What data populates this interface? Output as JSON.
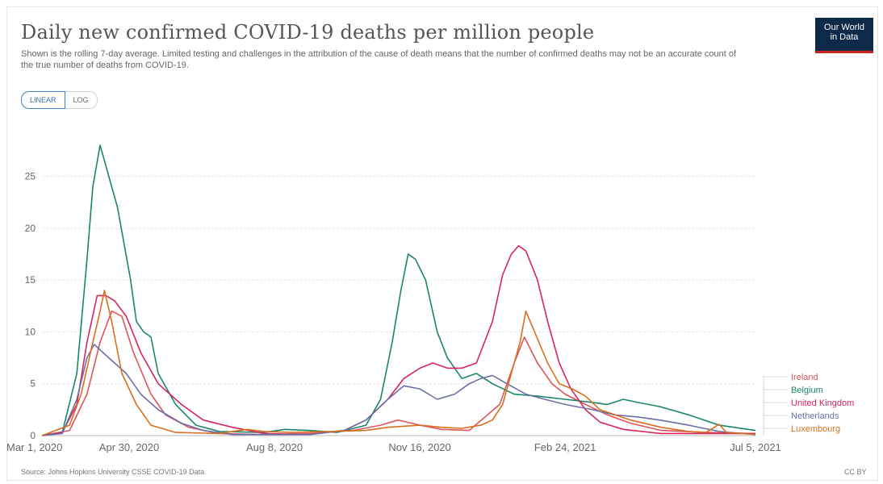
{
  "header": {
    "title": "Daily new confirmed COVID-19 deaths per million people",
    "subtitle": "Shown is the rolling 7-day average. Limited testing and challenges in the attribution of the cause of death means that the number of confirmed deaths may not be an accurate count of the true number of deaths from COVID-19.",
    "logo_line1": "Our World",
    "logo_line2": "in Data"
  },
  "controls": {
    "linear_label": "LINEAR",
    "log_label": "LOG",
    "active": "LINEAR"
  },
  "footer": {
    "source": "Source: Johns Hopkins University CSSE COVID-19 Data",
    "license": "CC BY"
  },
  "chart_data": {
    "type": "line",
    "title": "Daily new confirmed COVID-19 deaths per million people",
    "xlabel": "",
    "ylabel": "",
    "x_range": [
      "2020-03-01",
      "2021-07-05"
    ],
    "ylim": [
      0,
      28
    ],
    "y_ticks": [
      0,
      5,
      10,
      15,
      20,
      25
    ],
    "x_ticks": [
      {
        "date": "2020-03-01",
        "label": "Mar 1, 2020"
      },
      {
        "date": "2020-04-30",
        "label": "Apr 30, 2020"
      },
      {
        "date": "2020-08-08",
        "label": "Aug 8, 2020"
      },
      {
        "date": "2020-11-16",
        "label": "Nov 16, 2020"
      },
      {
        "date": "2021-02-24",
        "label": "Feb 24, 2021"
      },
      {
        "date": "2021-07-05",
        "label": "Jul 5, 2021"
      }
    ],
    "grid": "horizontal",
    "legend_position": "right",
    "series": [
      {
        "name": "Ireland",
        "color": "#e0545b",
        "points": [
          [
            "2020-03-01",
            0
          ],
          [
            "2020-03-20",
            0.5
          ],
          [
            "2020-04-01",
            4
          ],
          [
            "2020-04-10",
            9
          ],
          [
            "2020-04-18",
            12
          ],
          [
            "2020-04-25",
            11.5
          ],
          [
            "2020-05-03",
            8
          ],
          [
            "2020-05-15",
            4
          ],
          [
            "2020-05-25",
            2
          ],
          [
            "2020-06-10",
            0.8
          ],
          [
            "2020-07-01",
            0.2
          ],
          [
            "2020-08-01",
            0.1
          ],
          [
            "2020-09-01",
            0.2
          ],
          [
            "2020-10-01",
            0.5
          ],
          [
            "2020-10-20",
            1
          ],
          [
            "2020-11-01",
            1.5
          ],
          [
            "2020-11-16",
            1
          ],
          [
            "2020-12-01",
            0.6
          ],
          [
            "2020-12-20",
            0.5
          ],
          [
            "2021-01-10",
            3
          ],
          [
            "2021-01-20",
            7
          ],
          [
            "2021-01-27",
            9.5
          ],
          [
            "2021-02-05",
            7
          ],
          [
            "2021-02-15",
            5
          ],
          [
            "2021-02-24",
            4
          ],
          [
            "2021-03-10",
            3
          ],
          [
            "2021-03-25",
            2
          ],
          [
            "2021-04-10",
            1.2
          ],
          [
            "2021-05-01",
            0.5
          ],
          [
            "2021-06-01",
            0.3
          ],
          [
            "2021-07-05",
            0.2
          ]
        ]
      },
      {
        "name": "Belgium",
        "color": "#19866b",
        "points": [
          [
            "2020-03-01",
            0
          ],
          [
            "2020-03-15",
            0.3
          ],
          [
            "2020-03-25",
            6
          ],
          [
            "2020-04-01",
            17
          ],
          [
            "2020-04-05",
            24
          ],
          [
            "2020-04-10",
            28
          ],
          [
            "2020-04-12",
            27
          ],
          [
            "2020-04-16",
            25
          ],
          [
            "2020-04-22",
            22
          ],
          [
            "2020-05-01",
            15
          ],
          [
            "2020-05-05",
            11
          ],
          [
            "2020-05-10",
            10
          ],
          [
            "2020-05-15",
            9.5
          ],
          [
            "2020-05-20",
            6
          ],
          [
            "2020-06-01",
            3
          ],
          [
            "2020-06-15",
            1
          ],
          [
            "2020-07-01",
            0.4
          ],
          [
            "2020-08-01",
            0.3
          ],
          [
            "2020-08-15",
            0.6
          ],
          [
            "2020-09-01",
            0.5
          ],
          [
            "2020-09-20",
            0.3
          ],
          [
            "2020-10-10",
            1
          ],
          [
            "2020-10-20",
            3.5
          ],
          [
            "2020-10-28",
            9
          ],
          [
            "2020-11-03",
            14
          ],
          [
            "2020-11-08",
            17.5
          ],
          [
            "2020-11-13",
            17
          ],
          [
            "2020-11-20",
            15
          ],
          [
            "2020-11-28",
            10
          ],
          [
            "2020-12-05",
            7.5
          ],
          [
            "2020-12-15",
            5.5
          ],
          [
            "2020-12-25",
            6
          ],
          [
            "2021-01-05",
            5
          ],
          [
            "2021-01-20",
            4
          ],
          [
            "2021-02-05",
            3.8
          ],
          [
            "2021-02-24",
            3.5
          ],
          [
            "2021-03-15",
            3.2
          ],
          [
            "2021-03-25",
            3
          ],
          [
            "2021-04-05",
            3.5
          ],
          [
            "2021-04-15",
            3.2
          ],
          [
            "2021-04-30",
            2.8
          ],
          [
            "2021-05-20",
            2
          ],
          [
            "2021-06-10",
            1
          ],
          [
            "2021-07-05",
            0.5
          ]
        ]
      },
      {
        "name": "United Kingdom",
        "color": "#d6265c",
        "points": [
          [
            "2020-03-01",
            0
          ],
          [
            "2020-03-15",
            0.3
          ],
          [
            "2020-03-25",
            3
          ],
          [
            "2020-04-01",
            9
          ],
          [
            "2020-04-08",
            13.5
          ],
          [
            "2020-04-14",
            13.5
          ],
          [
            "2020-04-20",
            13
          ],
          [
            "2020-04-28",
            11.5
          ],
          [
            "2020-05-08",
            8
          ],
          [
            "2020-05-20",
            5
          ],
          [
            "2020-06-05",
            3
          ],
          [
            "2020-06-20",
            1.5
          ],
          [
            "2020-07-10",
            0.8
          ],
          [
            "2020-08-01",
            0.2
          ],
          [
            "2020-09-01",
            0.1
          ],
          [
            "2020-09-25",
            0.5
          ],
          [
            "2020-10-10",
            1.5
          ],
          [
            "2020-10-25",
            3.5
          ],
          [
            "2020-11-05",
            5.5
          ],
          [
            "2020-11-16",
            6.5
          ],
          [
            "2020-11-25",
            7
          ],
          [
            "2020-12-05",
            6.5
          ],
          [
            "2020-12-15",
            6.5
          ],
          [
            "2020-12-25",
            7
          ],
          [
            "2021-01-05",
            11
          ],
          [
            "2021-01-12",
            15.5
          ],
          [
            "2021-01-18",
            17.5
          ],
          [
            "2021-01-23",
            18.3
          ],
          [
            "2021-01-28",
            17.8
          ],
          [
            "2021-02-05",
            15
          ],
          [
            "2021-02-12",
            11
          ],
          [
            "2021-02-20",
            7
          ],
          [
            "2021-02-28",
            4.5
          ],
          [
            "2021-03-10",
            2.5
          ],
          [
            "2021-03-20",
            1.3
          ],
          [
            "2021-04-05",
            0.6
          ],
          [
            "2021-05-01",
            0.2
          ],
          [
            "2021-07-05",
            0.2
          ]
        ]
      },
      {
        "name": "Netherlands",
        "color": "#6b6fa8",
        "points": [
          [
            "2020-03-01",
            0
          ],
          [
            "2020-03-15",
            0.2
          ],
          [
            "2020-03-25",
            3.5
          ],
          [
            "2020-04-01",
            7.5
          ],
          [
            "2020-04-06",
            8.8
          ],
          [
            "2020-04-12",
            8
          ],
          [
            "2020-04-20",
            7
          ],
          [
            "2020-04-28",
            6
          ],
          [
            "2020-05-08",
            4
          ],
          [
            "2020-05-20",
            2.5
          ],
          [
            "2020-06-05",
            1.2
          ],
          [
            "2020-06-20",
            0.5
          ],
          [
            "2020-07-10",
            0.1
          ],
          [
            "2020-09-01",
            0.1
          ],
          [
            "2020-09-25",
            0.5
          ],
          [
            "2020-10-10",
            1.5
          ],
          [
            "2020-10-25",
            3.5
          ],
          [
            "2020-11-05",
            4.8
          ],
          [
            "2020-11-16",
            4.5
          ],
          [
            "2020-11-28",
            3.5
          ],
          [
            "2020-12-10",
            4
          ],
          [
            "2020-12-20",
            5
          ],
          [
            "2020-12-28",
            5.5
          ],
          [
            "2021-01-05",
            5.8
          ],
          [
            "2021-01-15",
            5
          ],
          [
            "2021-01-28",
            4
          ],
          [
            "2021-02-10",
            3.5
          ],
          [
            "2021-02-24",
            3
          ],
          [
            "2021-03-15",
            2.5
          ],
          [
            "2021-03-30",
            2
          ],
          [
            "2021-04-15",
            1.8
          ],
          [
            "2021-04-30",
            1.5
          ],
          [
            "2021-05-20",
            1
          ],
          [
            "2021-06-10",
            0.4
          ],
          [
            "2021-07-05",
            0.1
          ]
        ]
      },
      {
        "name": "Luxembourg",
        "color": "#d86f1e",
        "points": [
          [
            "2020-03-01",
            0
          ],
          [
            "2020-03-20",
            1
          ],
          [
            "2020-03-28",
            4
          ],
          [
            "2020-04-05",
            9
          ],
          [
            "2020-04-10",
            12
          ],
          [
            "2020-04-13",
            14
          ],
          [
            "2020-04-18",
            11
          ],
          [
            "2020-04-25",
            6
          ],
          [
            "2020-05-05",
            3
          ],
          [
            "2020-05-15",
            1
          ],
          [
            "2020-06-01",
            0.3
          ],
          [
            "2020-07-01",
            0.2
          ],
          [
            "2020-07-20",
            0.6
          ],
          [
            "2020-08-01",
            0.4
          ],
          [
            "2020-08-20",
            0.3
          ],
          [
            "2020-09-15",
            0.4
          ],
          [
            "2020-10-10",
            0.5
          ],
          [
            "2020-10-25",
            0.8
          ],
          [
            "2020-11-16",
            1
          ],
          [
            "2020-12-01",
            0.8
          ],
          [
            "2020-12-15",
            0.7
          ],
          [
            "2020-12-28",
            1
          ],
          [
            "2021-01-05",
            1.5
          ],
          [
            "2021-01-12",
            3
          ],
          [
            "2021-01-18",
            6
          ],
          [
            "2021-01-24",
            9
          ],
          [
            "2021-01-28",
            12
          ],
          [
            "2021-02-03",
            10
          ],
          [
            "2021-02-12",
            7
          ],
          [
            "2021-02-20",
            5
          ],
          [
            "2021-03-01",
            4.5
          ],
          [
            "2021-03-10",
            3.8
          ],
          [
            "2021-03-20",
            2.5
          ],
          [
            "2021-04-10",
            1.5
          ],
          [
            "2021-05-01",
            0.8
          ],
          [
            "2021-05-20",
            0.4
          ],
          [
            "2021-06-01",
            0.3
          ],
          [
            "2021-06-10",
            1.1
          ],
          [
            "2021-06-15",
            0.3
          ],
          [
            "2021-07-05",
            0.1
          ]
        ]
      }
    ]
  }
}
